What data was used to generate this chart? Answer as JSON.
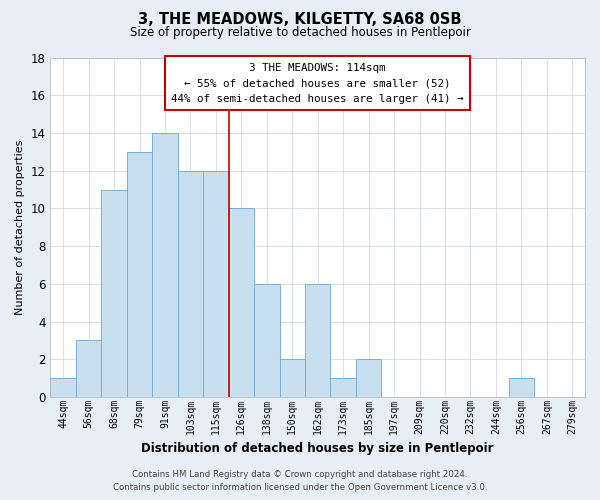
{
  "title": "3, THE MEADOWS, KILGETTY, SA68 0SB",
  "subtitle": "Size of property relative to detached houses in Pentlepoir",
  "xlabel": "Distribution of detached houses by size in Pentlepoir",
  "ylabel": "Number of detached properties",
  "bin_labels": [
    "44sqm",
    "56sqm",
    "68sqm",
    "79sqm",
    "91sqm",
    "103sqm",
    "115sqm",
    "126sqm",
    "138sqm",
    "150sqm",
    "162sqm",
    "173sqm",
    "185sqm",
    "197sqm",
    "209sqm",
    "220sqm",
    "232sqm",
    "244sqm",
    "256sqm",
    "267sqm",
    "279sqm"
  ],
  "bar_heights": [
    1,
    3,
    11,
    13,
    14,
    12,
    12,
    10,
    6,
    2,
    6,
    1,
    2,
    0,
    0,
    0,
    0,
    0,
    1,
    0,
    0
  ],
  "bar_color": "#c8dff0",
  "bar_edge_color": "#7bafd4",
  "highlight_bar_index": 6,
  "vline_color": "#cc0000",
  "ylim": [
    0,
    18
  ],
  "yticks": [
    0,
    2,
    4,
    6,
    8,
    10,
    12,
    14,
    16,
    18
  ],
  "annotation_line1": "3 THE MEADOWS: 114sqm",
  "annotation_line2": "← 55% of detached houses are smaller (52)",
  "annotation_line3": "44% of semi-detached houses are larger (41) →",
  "footer_line1": "Contains HM Land Registry data © Crown copyright and database right 2024.",
  "footer_line2": "Contains public sector information licensed under the Open Government Licence v3.0.",
  "background_color": "#e8eef5",
  "plot_background": "#ffffff",
  "grid_color": "#d0d8e4"
}
